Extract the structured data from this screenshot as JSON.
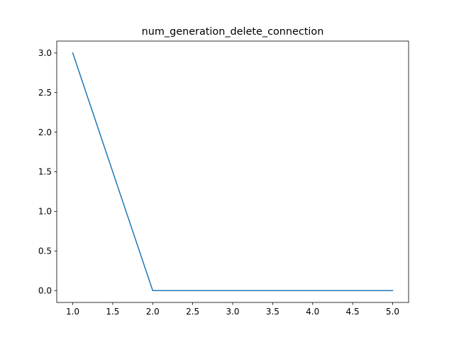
{
  "chart_data": {
    "type": "line",
    "title": "num_generation_delete_connection",
    "xlabel": "",
    "ylabel": "",
    "xlim": [
      0.8,
      5.2
    ],
    "ylim": [
      -0.15,
      3.15
    ],
    "x_ticks": [
      1.0,
      1.5,
      2.0,
      2.5,
      3.0,
      3.5,
      4.0,
      4.5,
      5.0
    ],
    "x_tick_labels": [
      "1.0",
      "1.5",
      "2.0",
      "2.5",
      "3.0",
      "3.5",
      "4.0",
      "4.5",
      "5.0"
    ],
    "y_ticks": [
      0.0,
      0.5,
      1.0,
      1.5,
      2.0,
      2.5,
      3.0
    ],
    "y_tick_labels": [
      "0.0",
      "0.5",
      "1.0",
      "1.5",
      "2.0",
      "2.5",
      "3.0"
    ],
    "grid": false,
    "series": [
      {
        "color": "#1f77b4",
        "x": [
          1,
          2,
          3,
          4,
          5
        ],
        "y": [
          3,
          0,
          0,
          0,
          0
        ]
      }
    ]
  }
}
